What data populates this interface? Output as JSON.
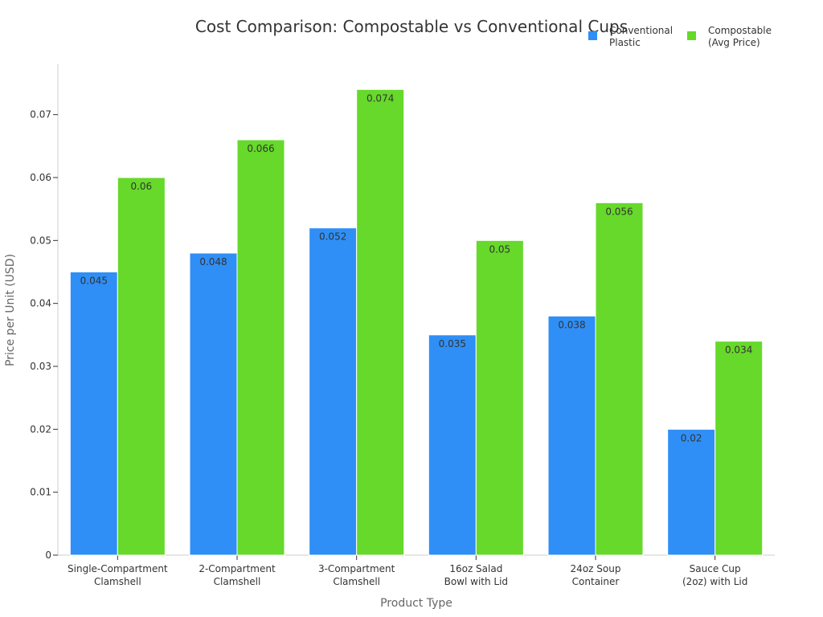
{
  "chart_data": {
    "type": "bar",
    "title": "Cost Comparison: Compostable vs Conventional Cups",
    "xlabel": "Product Type",
    "ylabel": "Price per Unit (USD)",
    "ylim": [
      0,
      0.078
    ],
    "yticks": [
      "0",
      "0.01",
      "0.02",
      "0.03",
      "0.04",
      "0.05",
      "0.06",
      "0.07"
    ],
    "ytick_values": [
      0,
      0.01,
      0.02,
      0.03,
      0.04,
      0.05,
      0.06,
      0.07
    ],
    "grid": false,
    "legend_position": "top-right",
    "categories": [
      [
        "Single-Compartment",
        "Clamshell"
      ],
      [
        "2-Compartment",
        "Clamshell"
      ],
      [
        "3-Compartment",
        "Clamshell"
      ],
      [
        "16oz Salad",
        "Bowl with Lid"
      ],
      [
        "24oz Soup",
        "Container"
      ],
      [
        "Sauce Cup",
        "(2oz) with Lid"
      ]
    ],
    "series": [
      {
        "name": [
          "Conventional",
          "Plastic"
        ],
        "color": "#2f8ff6",
        "values": [
          0.045,
          0.048,
          0.052,
          0.035,
          0.038,
          0.02
        ],
        "labels": [
          "0.045",
          "0.048",
          "0.052",
          "0.035",
          "0.038",
          "0.02"
        ]
      },
      {
        "name": [
          "Compostable",
          "(Avg Price)"
        ],
        "color": "#66d92a",
        "values": [
          0.06,
          0.066,
          0.074,
          0.05,
          0.056,
          0.034
        ],
        "labels": [
          "0.06",
          "0.066",
          "0.074",
          "0.05",
          "0.056",
          "0.034"
        ]
      }
    ]
  }
}
